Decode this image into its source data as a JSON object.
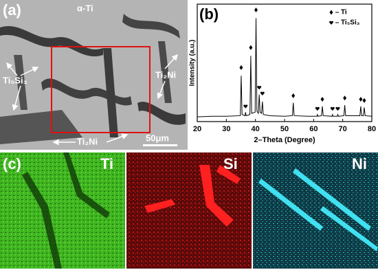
{
  "panels": {
    "a": {
      "label": "(a)",
      "phase_alpha": "α-Ti",
      "phase_silicide": "Ti₅Si₃",
      "phase_nickel_right": "Ti₂Ni",
      "phase_nickel_bottom": "Ti₂Ni",
      "scale_bar": "50μm"
    },
    "b": {
      "label": "(b)"
    },
    "c": {
      "label": "(c)",
      "maps": [
        "Ti",
        "Si",
        "Ni"
      ]
    }
  },
  "chart_data": {
    "type": "line",
    "x_label": "2–Theta (Degree)",
    "y_label": "Intensity (a.u.)",
    "xlim": [
      20,
      80
    ],
    "xticks": [
      20,
      30,
      40,
      50,
      60,
      70,
      80
    ],
    "ylim": [
      0,
      100
    ],
    "x": [
      20,
      25,
      30,
      34.8,
      35.1,
      35.4,
      36.4,
      36.6,
      36.8,
      38.1,
      38.4,
      38.7,
      39.9,
      40.2,
      40.5,
      41.0,
      41.3,
      41.6,
      42.1,
      42.4,
      42.7,
      45,
      50,
      52.7,
      53.0,
      53.3,
      58,
      61.1,
      61.3,
      61.5,
      62.7,
      63.0,
      63.3,
      66.3,
      66.5,
      66.7,
      68.1,
      68.3,
      68.5,
      70.4,
      70.7,
      71.0,
      75.9,
      76.2,
      76.5,
      77.1,
      77.4,
      77.7,
      80
    ],
    "series": [
      {
        "color": "#000000",
        "values": [
          4,
          4.5,
          4.5,
          5,
          39,
          6,
          5,
          8,
          5,
          6,
          56,
          7,
          8,
          88,
          9,
          7,
          23,
          8,
          7,
          17,
          6,
          5,
          4.5,
          5,
          16,
          5,
          4.5,
          4.5,
          6,
          4.5,
          5,
          13,
          5,
          4.5,
          6,
          4.5,
          4.5,
          6,
          4.5,
          5,
          14,
          5,
          5,
          13,
          5,
          5,
          12,
          5,
          4.5
        ]
      },
      {
        "name": "Ti",
        "marker": "diamond",
        "color": "#000000",
        "x": [
          35.1,
          38.4,
          40.2,
          53.0,
          63.0,
          70.7,
          76.2,
          77.4
        ],
        "values": [
          46,
          63,
          95,
          22,
          19,
          20,
          19,
          18
        ]
      },
      {
        "name": "Ti₅Si₃",
        "marker": "heart",
        "color": "#000000",
        "x": [
          36.6,
          41.3,
          42.4,
          61.3,
          66.5,
          68.3
        ],
        "values": [
          13,
          29,
          24,
          11,
          11,
          11
        ]
      }
    ]
  }
}
